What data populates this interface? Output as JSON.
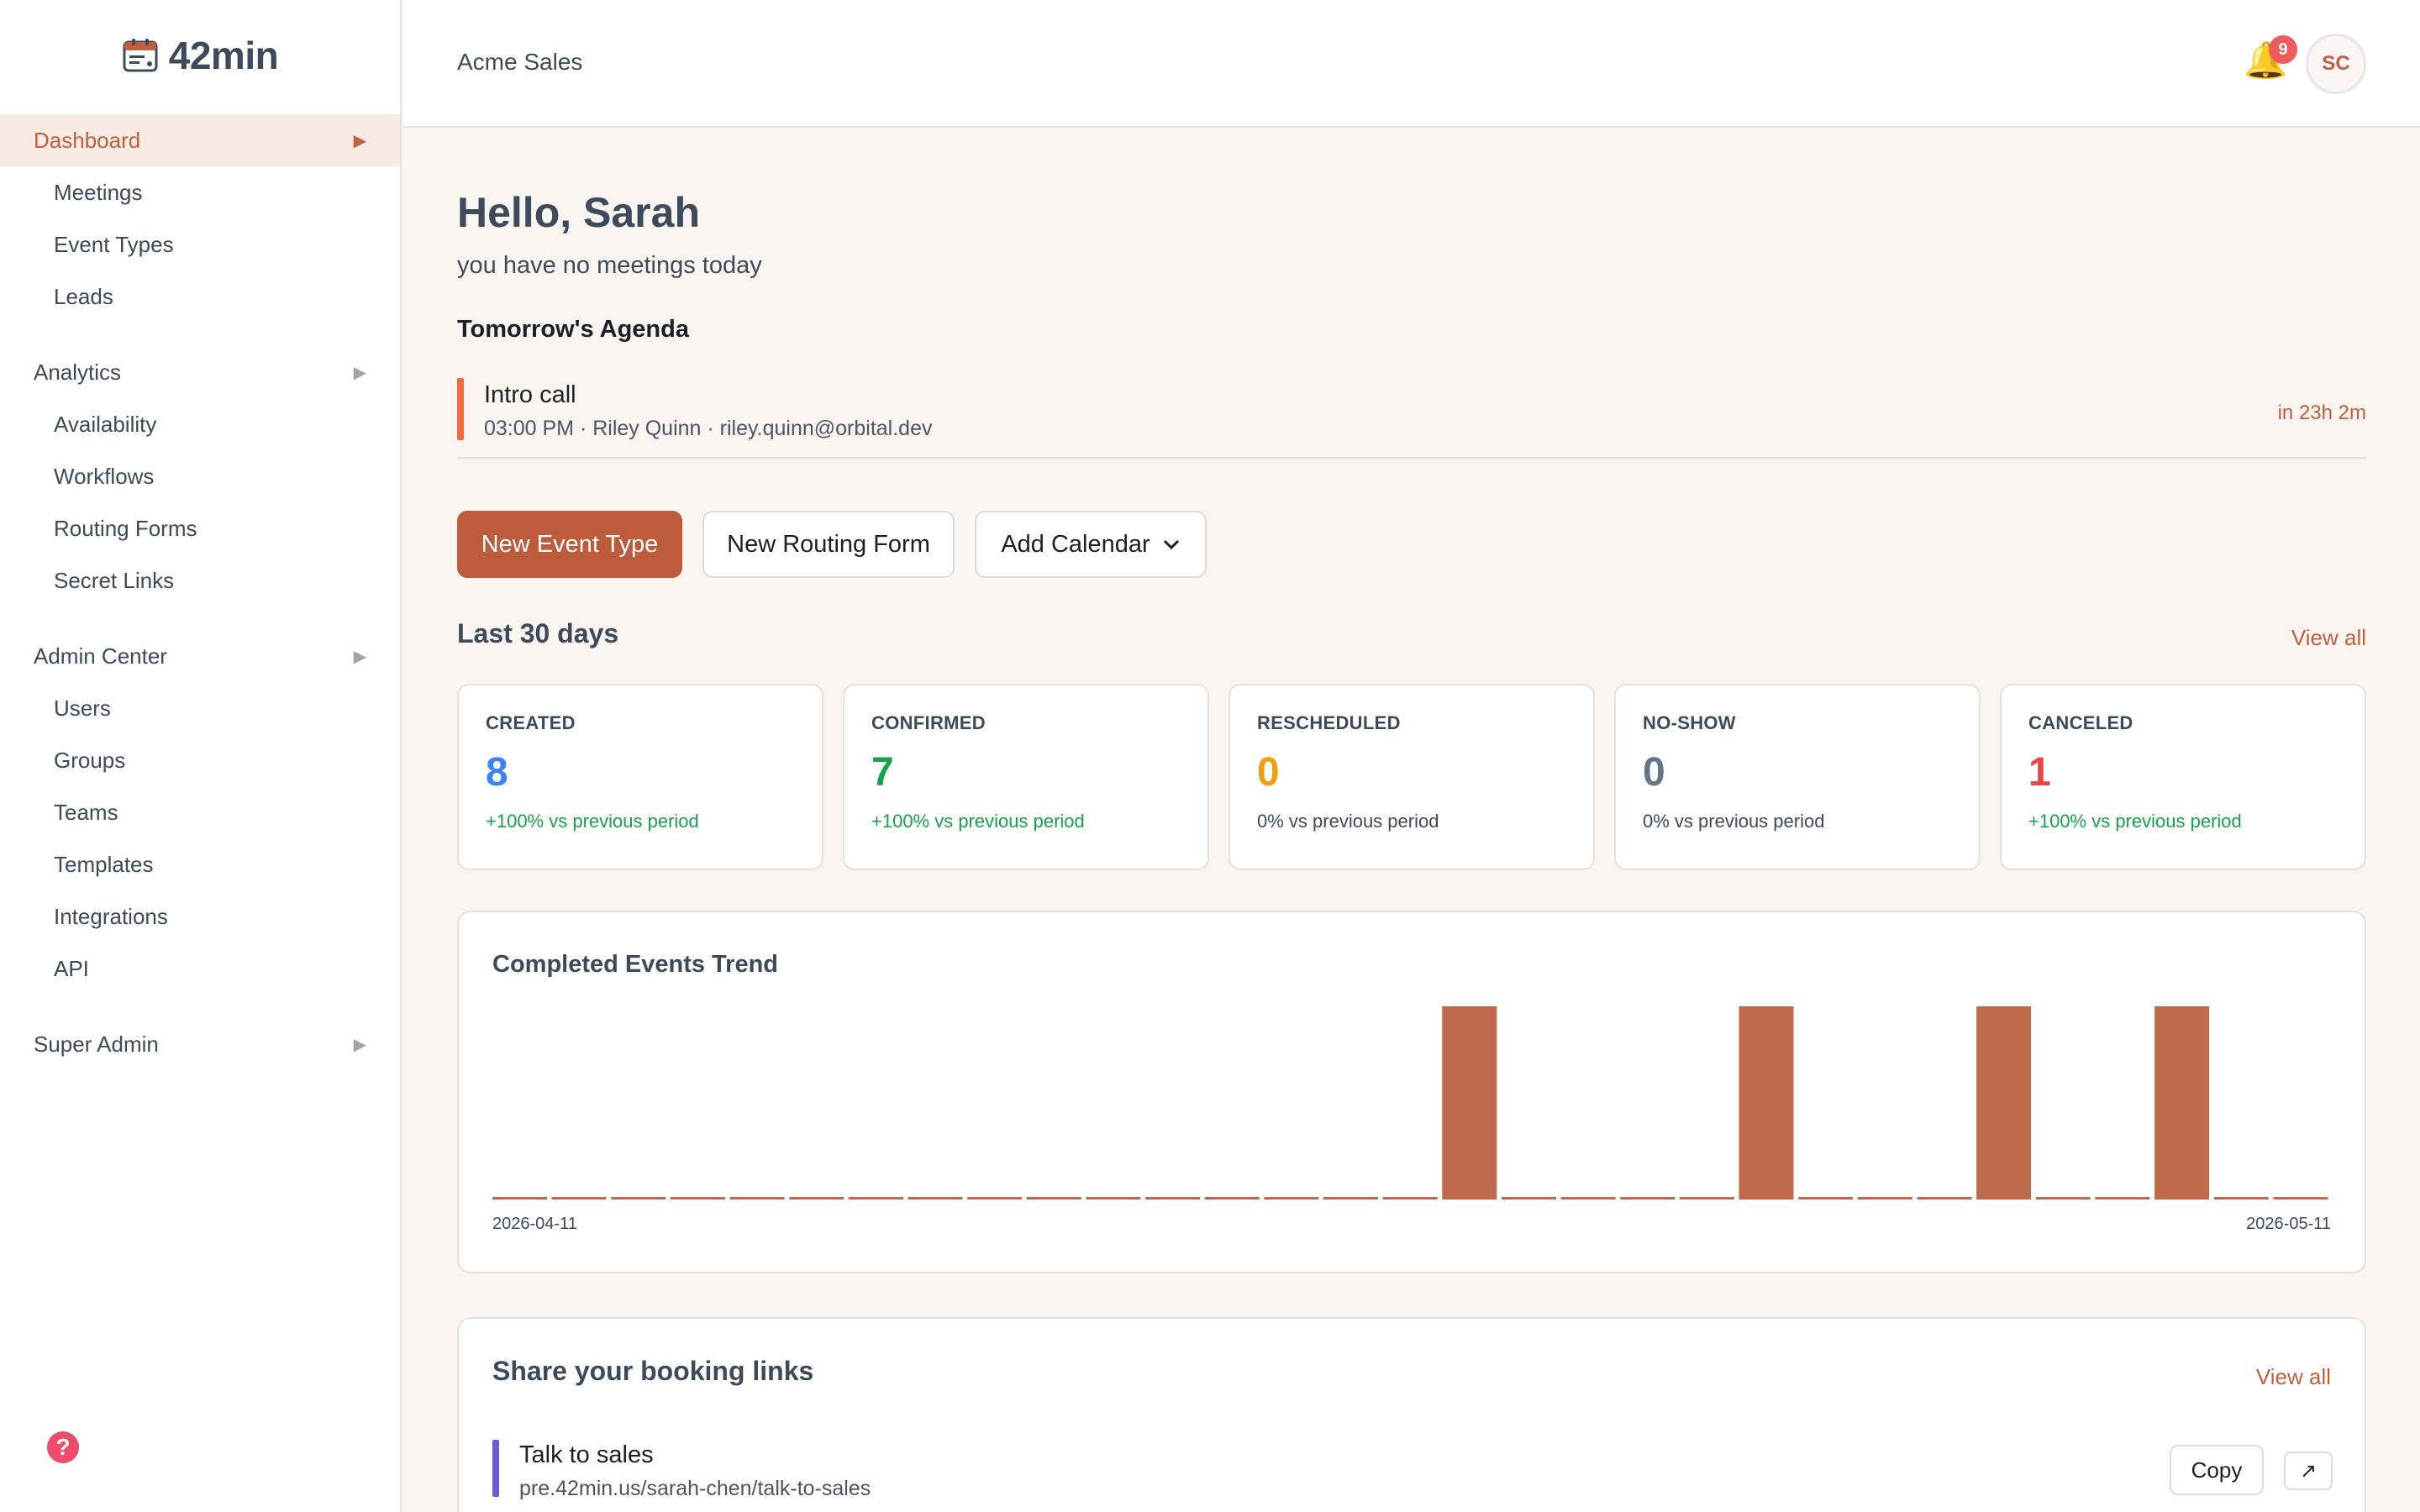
{
  "app": {
    "logo_text": "42min",
    "org_name": "Acme Sales"
  },
  "header": {
    "notification_count": "9",
    "avatar_initials": "SC"
  },
  "sidebar": {
    "groups": [
      {
        "label": "Dashboard",
        "active": true,
        "items": [
          "Meetings",
          "Event Types",
          "Leads"
        ]
      },
      {
        "label": "Analytics",
        "items": [
          "Availability",
          "Workflows",
          "Routing Forms",
          "Secret Links"
        ]
      },
      {
        "label": "Admin Center",
        "items": [
          "Users",
          "Groups",
          "Teams",
          "Templates",
          "Integrations",
          "API"
        ]
      },
      {
        "label": "Super Admin",
        "items": []
      }
    ],
    "arrow": "▶",
    "help_glyph": "?"
  },
  "main": {
    "greeting": "Hello, Sarah",
    "subtitle": "you have no meetings today",
    "agenda_title": "Tomorrow's Agenda",
    "agenda": {
      "name": "Intro call",
      "meta": "03:00 PM · Riley Quinn · riley.quinn@orbital.dev",
      "countdown": "in 23h 2m"
    },
    "buttons": {
      "new_event_type": "New Event Type",
      "new_routing_form": "New Routing Form",
      "add_calendar": "Add Calendar"
    },
    "stats_title": "Last 30 days",
    "view_all": "View all",
    "stats": [
      {
        "label": "CREATED",
        "value": "8",
        "delta": "+100% vs previous period",
        "color": "#3b82f6",
        "delta_color": "#16a34a"
      },
      {
        "label": "CONFIRMED",
        "value": "7",
        "delta": "+100% vs previous period",
        "color": "#16a34a",
        "delta_color": "#16a34a"
      },
      {
        "label": "RESCHEDULED",
        "value": "0",
        "delta": "0% vs previous period",
        "color": "#f59e0b",
        "delta_color": "#3d4a5c"
      },
      {
        "label": "NO-SHOW",
        "value": "0",
        "delta": "0% vs previous period",
        "color": "#64748b",
        "delta_color": "#3d4a5c"
      },
      {
        "label": "CANCELED",
        "value": "1",
        "delta": "+100% vs previous period",
        "color": "#ef4444",
        "delta_color": "#16a34a"
      }
    ],
    "links_title": "Share your booking links",
    "links_view_all": "View all",
    "links": [
      {
        "name": "Talk to sales",
        "url": "pre.42min.us/sarah-chen/talk-to-sales",
        "copy": "Copy",
        "open": "↗"
      }
    ]
  },
  "chart_data": {
    "type": "bar",
    "title": "Completed Events Trend",
    "x_start_label": "2026-04-11",
    "x_end_label": "2026-05-11",
    "values": [
      0,
      0,
      0,
      0,
      0,
      0,
      0,
      0,
      0,
      0,
      0,
      0,
      0,
      0,
      0,
      0,
      1,
      0,
      0,
      0,
      0,
      1,
      0,
      0,
      0,
      1,
      0,
      0,
      1,
      0,
      0
    ],
    "ylim": [
      0,
      1
    ],
    "bar_color": "#c06a4d",
    "grid": false
  }
}
